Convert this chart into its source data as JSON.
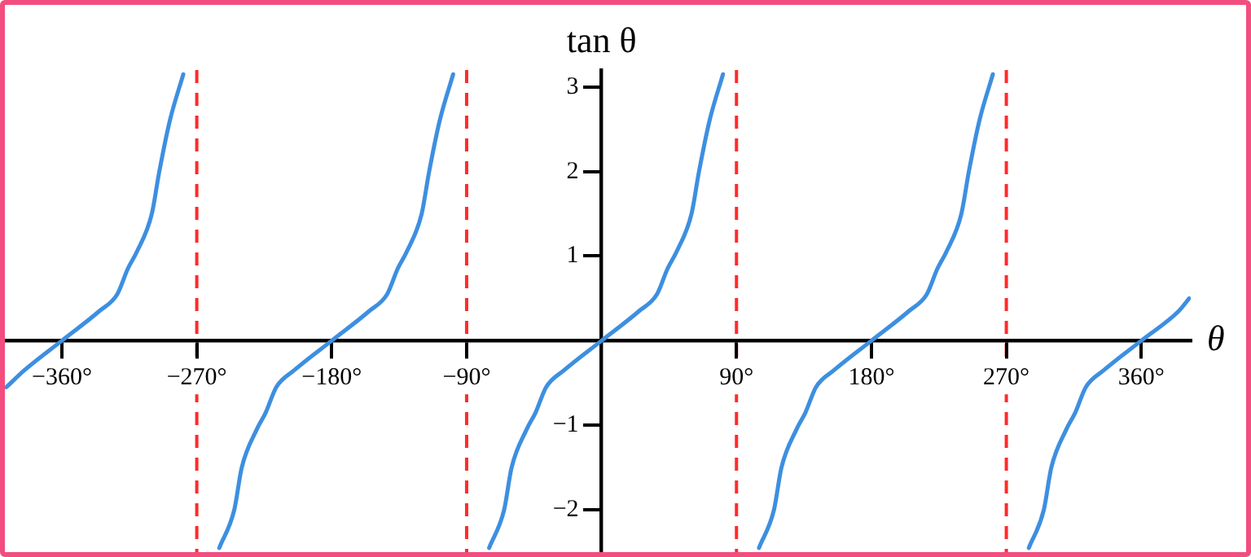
{
  "chart_data": {
    "type": "line",
    "xlabel": "θ",
    "ylabel": "tan θ",
    "xlim": [
      -398,
      393
    ],
    "ylim": [
      -2.5,
      3.2
    ],
    "xticks": [
      {
        "value": -360,
        "label": "−360°"
      },
      {
        "value": -270,
        "label": "−270°"
      },
      {
        "value": -180,
        "label": "−180°"
      },
      {
        "value": -90,
        "label": "−90°"
      },
      {
        "value": 90,
        "label": "90°"
      },
      {
        "value": 180,
        "label": "180°"
      },
      {
        "value": 270,
        "label": "270°"
      },
      {
        "value": 360,
        "label": "360°"
      }
    ],
    "yticks": [
      {
        "value": -2,
        "label": "−2"
      },
      {
        "value": -1,
        "label": "−1"
      },
      1,
      2,
      3
    ],
    "grid": false,
    "legend": false,
    "marker": "none",
    "line_style": "solid",
    "x": [
      -397,
      -385,
      -360,
      -335,
      -323,
      -316,
      -310,
      -300,
      -295,
      -288,
      -279,
      -270,
      -255,
      -245,
      -240,
      -230,
      -224,
      -217,
      -205,
      -180,
      -155,
      -143,
      -136,
      -130,
      -120,
      -115,
      -108,
      -99,
      -90,
      -75,
      -65,
      -60,
      -50,
      -44,
      -37,
      -25,
      0,
      25,
      37,
      44,
      50,
      60,
      65,
      72,
      81,
      90,
      105,
      115,
      120,
      130,
      136,
      143,
      155,
      180,
      205,
      217,
      224,
      230,
      240,
      245,
      252,
      261,
      270,
      285,
      295,
      300,
      310,
      316,
      323,
      335,
      360,
      385,
      392
    ],
    "series": [
      {
        "color": "#3d8fe0",
        "values": [
          -0.55,
          -0.35,
          0,
          0.35,
          0.55,
          0.85,
          1.05,
          1.5,
          2,
          2.6,
          3.15,
          null,
          -2.45,
          -2,
          -1.5,
          -1.05,
          -0.85,
          -0.55,
          -0.35,
          0,
          0.35,
          0.55,
          0.85,
          1.05,
          1.5,
          2,
          2.6,
          3.15,
          null,
          -2.45,
          -2,
          -1.5,
          -1.05,
          -0.85,
          -0.55,
          -0.35,
          0,
          0.35,
          0.55,
          0.85,
          1.05,
          1.5,
          2,
          2.6,
          3.15,
          null,
          -2.45,
          -2,
          -1.5,
          -1.05,
          -0.85,
          -0.55,
          -0.35,
          0,
          0.35,
          0.55,
          0.85,
          1.05,
          1.5,
          2,
          2.6,
          3.15,
          null,
          -2.45,
          -2,
          -1.5,
          -1.05,
          -0.85,
          -0.55,
          -0.35,
          0,
          0.35,
          0.5
        ]
      }
    ],
    "ref_lines": [
      {
        "axis": "x",
        "value": -270,
        "color": "#ff2a2a",
        "line_style": "dashed"
      },
      {
        "axis": "x",
        "value": -90,
        "color": "#ff2a2a",
        "line_style": "dashed"
      },
      {
        "axis": "x",
        "value": 90,
        "color": "#ff2a2a",
        "line_style": "dashed"
      },
      {
        "axis": "x",
        "value": 270,
        "color": "#ff2a2a",
        "line_style": "dashed"
      }
    ]
  }
}
